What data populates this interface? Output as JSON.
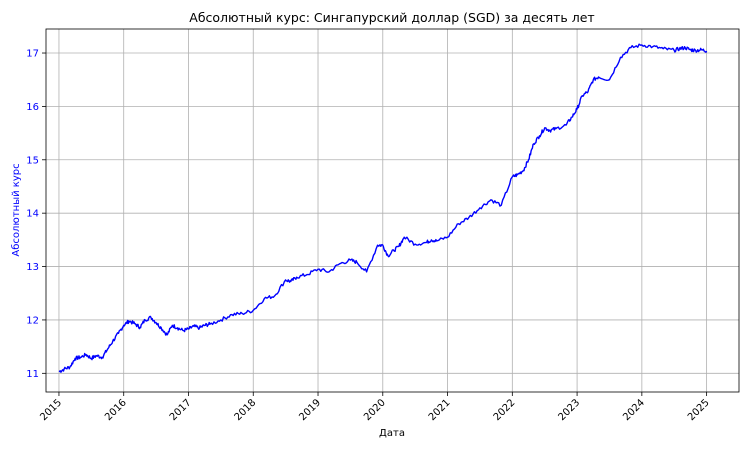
{
  "chart_data": {
    "type": "line",
    "title": "Абсолютный курс: Сингапурский доллар (SGD) за десять лет",
    "xlabel": "Дата",
    "ylabel": "Абсолютный курс",
    "xlim": [
      2014.8,
      2025.5
    ],
    "ylim": [
      10.65,
      17.45
    ],
    "x_ticks": [
      "2015",
      "2016",
      "2017",
      "2018",
      "2019",
      "2020",
      "2021",
      "2022",
      "2023",
      "2024",
      "2025"
    ],
    "y_ticks": [
      "11",
      "12",
      "13",
      "14",
      "15",
      "16",
      "17"
    ],
    "grid": true,
    "colors": {
      "series": "#0000ff",
      "ylabel": "#0000ff"
    },
    "series": [
      {
        "x": [
          2015.0,
          2015.08,
          2015.17,
          2015.25,
          2015.33,
          2015.42,
          2015.5,
          2015.58,
          2015.67,
          2015.75,
          2015.83,
          2015.92,
          2016.0,
          2016.08,
          2016.17,
          2016.25,
          2016.33,
          2016.42,
          2016.5,
          2016.58,
          2016.67,
          2016.75,
          2016.83,
          2016.92,
          2017.0,
          2017.08,
          2017.17,
          2017.25,
          2017.33,
          2017.5,
          2017.67,
          2017.83,
          2018.0,
          2018.17,
          2018.33,
          2018.5,
          2018.58,
          2018.67,
          2018.83,
          2019.0,
          2019.17,
          2019.33,
          2019.5,
          2019.6,
          2019.75,
          2019.92,
          2020.0,
          2020.08,
          2020.17,
          2020.25,
          2020.33,
          2020.5,
          2020.67,
          2020.75,
          2020.83,
          2021.0,
          2021.17,
          2021.33,
          2021.5,
          2021.67,
          2021.83,
          2022.0,
          2022.08,
          2022.17,
          2022.25,
          2022.33,
          2022.42,
          2022.5,
          2022.58,
          2022.67,
          2022.83,
          2022.92,
          2023.0,
          2023.08,
          2023.17,
          2023.25,
          2023.33,
          2023.5,
          2023.67,
          2023.83,
          2024.0,
          2024.17,
          2024.33,
          2024.5,
          2024.58,
          2024.67,
          2024.75,
          2024.83,
          2024.92,
          2025.0
        ],
        "values": [
          11.03,
          11.08,
          11.12,
          11.28,
          11.3,
          11.35,
          11.28,
          11.33,
          11.3,
          11.45,
          11.6,
          11.75,
          11.9,
          11.98,
          11.93,
          11.86,
          12.0,
          12.05,
          11.95,
          11.85,
          11.72,
          11.9,
          11.85,
          11.8,
          11.83,
          11.88,
          11.85,
          11.9,
          11.92,
          12.0,
          12.1,
          12.12,
          12.18,
          12.4,
          12.45,
          12.75,
          12.72,
          12.8,
          12.85,
          12.95,
          12.9,
          13.05,
          13.12,
          13.08,
          12.9,
          13.4,
          13.4,
          13.2,
          13.3,
          13.38,
          13.55,
          13.42,
          13.45,
          13.5,
          13.48,
          13.55,
          13.8,
          13.92,
          14.1,
          14.25,
          14.15,
          14.68,
          14.72,
          14.8,
          15.0,
          15.3,
          15.45,
          15.6,
          15.55,
          15.58,
          15.65,
          15.8,
          15.95,
          16.2,
          16.28,
          16.5,
          16.55,
          16.5,
          16.92,
          17.1,
          17.15,
          17.12,
          17.08,
          17.05,
          17.08,
          17.1,
          17.06,
          17.05,
          17.06,
          17.04
        ]
      }
    ]
  }
}
